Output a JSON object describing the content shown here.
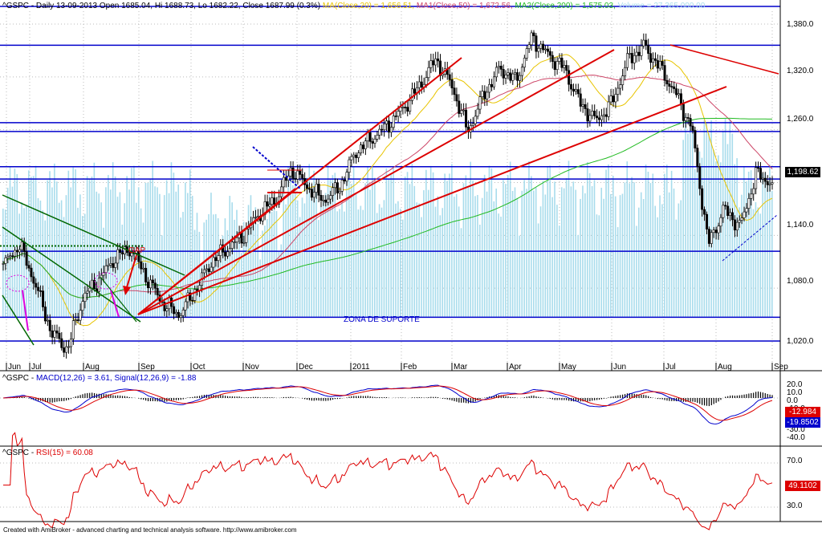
{
  "title_bar": {
    "symbol": "^GSPC",
    "info": "- Daily 13-09-2013 Open 1685.04, Hi 1688.73, Lo 1682.22, Close 1687.99 (0.3%)",
    "ma20": "MA(Close,20) = 1,656.51,",
    "ma50": "MA1(Close,50) = 1,672.56,",
    "ma200": "MA2(Close,200) = 1,575.03,",
    "volume": "Volume = 27,365,000.00"
  },
  "colors": {
    "background": "#ffffff",
    "hline": "#0000cc",
    "trend_red": "#dd0000",
    "trend_green": "#006600",
    "ma20": "#e8c400",
    "ma50": "#cc4466",
    "ma200": "#22bb22",
    "volume": "#a8dcec",
    "macd": "#0000cc",
    "signal": "#dd0000",
    "rsi": "#dd0000"
  },
  "annotations": {
    "gap": "GAP",
    "support": "ZONA DE SUPORTE"
  },
  "price_panel": {
    "last_price_label": "1,198.62",
    "y_labels": [
      "1,380.0",
      "1,320.0",
      "1,260.0",
      "1,198.62",
      "1,140.0",
      "1,080.0",
      "1,020.0"
    ]
  },
  "x_axis": {
    "labels": [
      "Jun",
      "Jul",
      "Aug",
      "Sep",
      "Oct",
      "Nov",
      "Dec",
      "2011",
      "Feb",
      "Mar",
      "Apr",
      "May",
      "Jun",
      "Jul",
      "Aug",
      "Sep"
    ]
  },
  "macd_panel": {
    "title_symbol": "^GSPC",
    "macd_label": "MACD(12,26) = 3.61,",
    "signal_label": "Signal(12,26,9) = -1.88",
    "y_labels": [
      "20.0",
      "10.0",
      "0.0",
      "-10.0",
      "-30.0",
      "-40.0"
    ],
    "flag_macd": "-12.984",
    "flag_signal": "-19.8502"
  },
  "rsi_panel": {
    "title_symbol": "^GSPC",
    "rsi_label": "RSI(15) = 60.08",
    "y_labels": [
      "70.0",
      "30.0"
    ],
    "flag_rsi": "49.1102"
  },
  "footer": "Created with AmiBroker - advanced charting and technical analysis software. http://www.amibroker.com",
  "chart_data": {
    "type": "candlestick",
    "title": "^GSPC - Daily",
    "ylim": [
      1000,
      1390
    ],
    "support_zone": [
      1020,
      1047
    ],
    "horizontal_levels": [
      1356,
      1268,
      1258,
      1218,
      1204,
      1122,
      1047,
      1020
    ],
    "price_path": [
      [
        "Jun",
        1105
      ],
      [
        "Jun",
        1130
      ],
      [
        "Jun",
        1085
      ],
      [
        "Jul",
        1030
      ],
      [
        "Jul",
        1010
      ],
      [
        "Jul",
        1070
      ],
      [
        "Jul",
        1090
      ],
      [
        "Aug",
        1115
      ],
      [
        "Aug",
        1125
      ],
      [
        "Aug",
        1090
      ],
      [
        "Aug",
        1062
      ],
      [
        "Aug",
        1050
      ],
      [
        "Sep",
        1078
      ],
      [
        "Sep",
        1110
      ],
      [
        "Sep",
        1125
      ],
      [
        "Oct",
        1140
      ],
      [
        "Oct",
        1165
      ],
      [
        "Oct",
        1180
      ],
      [
        "Nov",
        1215
      ],
      [
        "Nov",
        1195
      ],
      [
        "Nov",
        1180
      ],
      [
        "Dec",
        1195
      ],
      [
        "Dec",
        1235
      ],
      [
        "Dec",
        1250
      ],
      [
        "2011",
        1265
      ],
      [
        "2011",
        1285
      ],
      [
        "Feb",
        1310
      ],
      [
        "Feb",
        1340
      ],
      [
        "Mar",
        1310
      ],
      [
        "Mar",
        1258
      ],
      [
        "Mar",
        1300
      ],
      [
        "Apr",
        1330
      ],
      [
        "Apr",
        1315
      ],
      [
        "May",
        1365
      ],
      [
        "May",
        1345
      ],
      [
        "May",
        1330
      ],
      [
        "Jun",
        1290
      ],
      [
        "Jun",
        1270
      ],
      [
        "Jun",
        1290
      ],
      [
        "Jul",
        1340
      ],
      [
        "Jul",
        1355
      ],
      [
        "Jul",
        1330
      ],
      [
        "Jul",
        1300
      ],
      [
        "Aug",
        1260
      ],
      [
        "Aug",
        1130
      ],
      [
        "Aug",
        1170
      ],
      [
        "Aug",
        1150
      ],
      [
        "Sep",
        1210
      ],
      [
        "Sep",
        1198.62
      ]
    ]
  }
}
